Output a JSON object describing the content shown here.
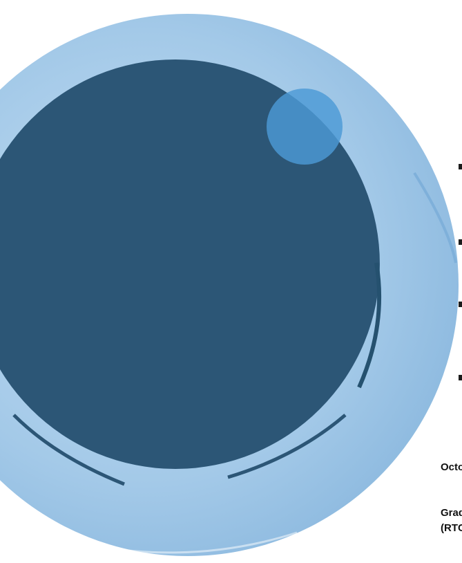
{
  "cover": {
    "date_fragment": "Octo",
    "org_line1_fragment": "Grad",
    "org_line2_fragment": "(RTC",
    "colors": {
      "outer_ring": "#a3c9e8",
      "inner_disc": "#2c5676",
      "accent_circle": "#5aa3da"
    }
  }
}
